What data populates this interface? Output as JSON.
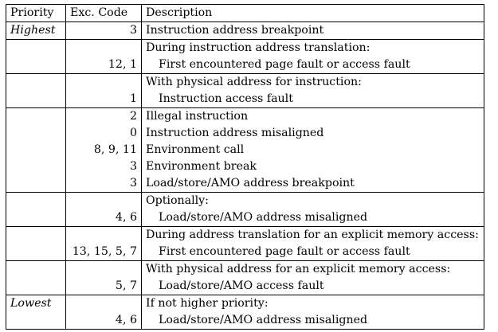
{
  "headers": {
    "priority": "Priority",
    "code": "Exc. Code",
    "description": "Description"
  },
  "groups": [
    {
      "priority": "Highest",
      "codes": [
        "3"
      ],
      "lines": [
        {
          "text": "Instruction address breakpoint",
          "indent": false
        }
      ]
    },
    {
      "priority": "",
      "codes": [
        "",
        "12, 1"
      ],
      "lines": [
        {
          "text": "During instruction address translation:",
          "indent": false
        },
        {
          "text": "First encountered page fault or access fault",
          "indent": true
        }
      ]
    },
    {
      "priority": "",
      "codes": [
        "",
        "1"
      ],
      "lines": [
        {
          "text": "With physical address for instruction:",
          "indent": false
        },
        {
          "text": "Instruction access fault",
          "indent": true
        }
      ]
    },
    {
      "priority": "",
      "codes": [
        "2",
        "0",
        "8, 9, 11",
        "3",
        "3"
      ],
      "lines": [
        {
          "text": "Illegal instruction",
          "indent": false
        },
        {
          "text": "Instruction address misaligned",
          "indent": false
        },
        {
          "text": "Environment call",
          "indent": false
        },
        {
          "text": "Environment break",
          "indent": false
        },
        {
          "text": "Load/store/AMO address breakpoint",
          "indent": false
        }
      ]
    },
    {
      "priority": "",
      "codes": [
        "",
        "4, 6"
      ],
      "lines": [
        {
          "text": "Optionally:",
          "indent": false
        },
        {
          "text": "Load/store/AMO address misaligned",
          "indent": true
        }
      ]
    },
    {
      "priority": "",
      "codes": [
        "",
        "13, 15, 5, 7"
      ],
      "lines": [
        {
          "text": "During address translation for an explicit memory access:",
          "indent": false
        },
        {
          "text": "First encountered page fault or access fault",
          "indent": true
        }
      ]
    },
    {
      "priority": "",
      "codes": [
        "",
        "5, 7"
      ],
      "lines": [
        {
          "text": "With physical address for an explicit memory access:",
          "indent": false
        },
        {
          "text": "Load/store/AMO access fault",
          "indent": true
        }
      ]
    },
    {
      "priority": "Lowest",
      "codes": [
        "",
        "4, 6"
      ],
      "lines": [
        {
          "text": "If not higher priority:",
          "indent": false
        },
        {
          "text": "Load/store/AMO address misaligned",
          "indent": true
        }
      ]
    }
  ]
}
